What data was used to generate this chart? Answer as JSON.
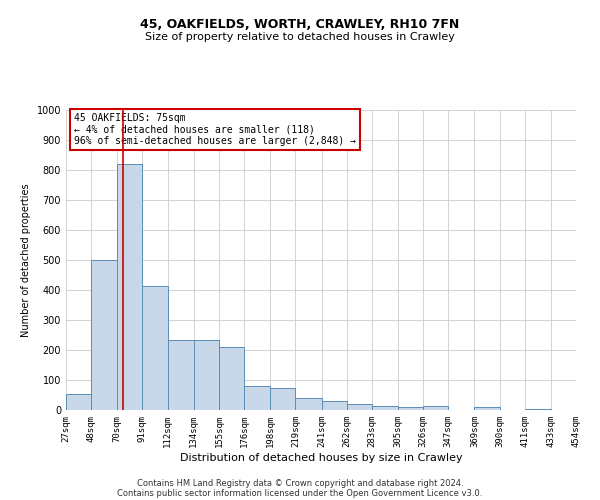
{
  "title1": "45, OAKFIELDS, WORTH, CRAWLEY, RH10 7FN",
  "title2": "Size of property relative to detached houses in Crawley",
  "xlabel": "Distribution of detached houses by size in Crawley",
  "ylabel": "Number of detached properties",
  "footer1": "Contains HM Land Registry data © Crown copyright and database right 2024.",
  "footer2": "Contains public sector information licensed under the Open Government Licence v3.0.",
  "annotation_title": "45 OAKFIELDS: 75sqm",
  "annotation_line1": "← 4% of detached houses are smaller (118)",
  "annotation_line2": "96% of semi-detached houses are larger (2,848) →",
  "property_sqm": 75,
  "bar_left_edges": [
    27,
    48,
    70,
    91,
    112,
    134,
    155,
    176,
    198,
    219,
    241,
    262,
    283,
    305,
    326,
    347,
    369,
    390,
    411,
    433
  ],
  "bar_widths": [
    21,
    22,
    21,
    21,
    22,
    21,
    21,
    22,
    21,
    22,
    21,
    21,
    22,
    21,
    21,
    22,
    21,
    21,
    22,
    21
  ],
  "bar_heights": [
    55,
    500,
    820,
    415,
    235,
    235,
    210,
    80,
    75,
    40,
    30,
    20,
    15,
    10,
    15,
    0,
    10,
    0,
    5,
    0
  ],
  "bar_color": "#c8d8e8",
  "bar_edge_color": "#5b8db8",
  "red_line_x": 75,
  "annotation_box_color": "#ffffff",
  "annotation_box_edge": "#cc0000",
  "ylim": [
    0,
    1000
  ],
  "yticks": [
    0,
    100,
    200,
    300,
    400,
    500,
    600,
    700,
    800,
    900,
    1000
  ],
  "tick_labels": [
    "27sqm",
    "48sqm",
    "70sqm",
    "91sqm",
    "112sqm",
    "134sqm",
    "155sqm",
    "176sqm",
    "198sqm",
    "219sqm",
    "241sqm",
    "262sqm",
    "283sqm",
    "305sqm",
    "326sqm",
    "347sqm",
    "369sqm",
    "390sqm",
    "411sqm",
    "433sqm",
    "454sqm"
  ],
  "grid_color": "#cccccc",
  "background_color": "#ffffff",
  "title1_fontsize": 9,
  "title2_fontsize": 8,
  "xlabel_fontsize": 8,
  "ylabel_fontsize": 7,
  "tick_fontsize": 6.5,
  "ytick_fontsize": 7,
  "annotation_fontsize": 7,
  "footer_fontsize": 6
}
